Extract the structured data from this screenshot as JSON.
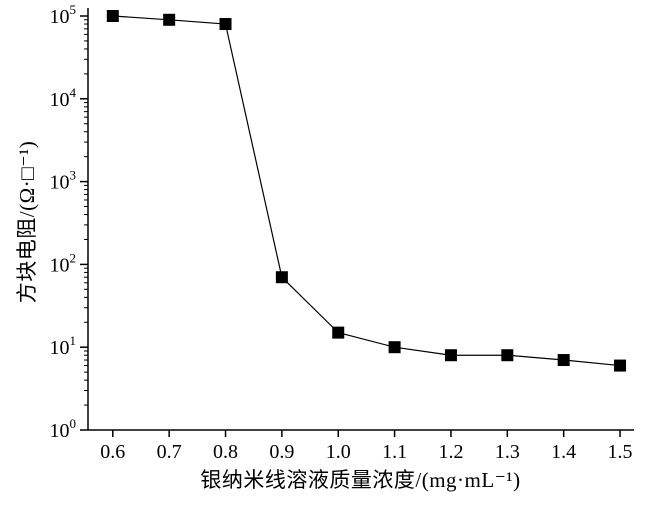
{
  "chart_data": {
    "type": "line",
    "title": "",
    "xlabel": "银纳米线溶液质量浓度/(mg·mL⁻¹)",
    "ylabel": "方块电阻/(Ω·□⁻¹)",
    "x": [
      0.6,
      0.7,
      0.8,
      0.9,
      1.0,
      1.1,
      1.2,
      1.3,
      1.4,
      1.5
    ],
    "y": [
      100000,
      90000,
      80000,
      70,
      15,
      10,
      8,
      8,
      7,
      6
    ],
    "xlim": [
      0.556,
      1.523
    ],
    "ylim_exp": [
      0,
      5
    ],
    "yscale": "log",
    "xticks": [
      0.6,
      0.7,
      0.8,
      0.9,
      1.0,
      1.1,
      1.2,
      1.3,
      1.4,
      1.5
    ],
    "ytick_exponents": [
      0,
      1,
      2,
      3,
      4,
      5
    ],
    "ytick_base": "10",
    "marker": "filled-square",
    "marker_color": "#000000",
    "line_color": "#000000",
    "axis_color": "#000000",
    "grid": false,
    "legend": false
  }
}
